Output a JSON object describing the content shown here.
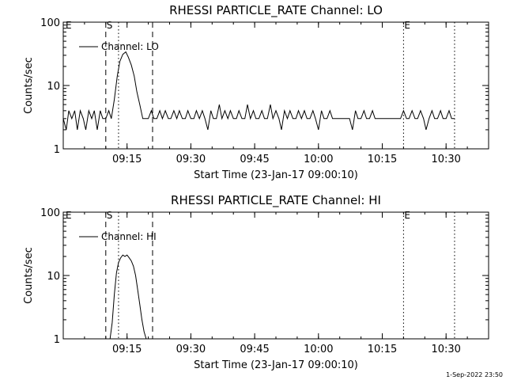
{
  "timestamp": "1-Sep-2022 23:50",
  "chart_data": [
    {
      "type": "line",
      "title": "RHESSI PARTICLE_RATE Channel: LO",
      "xlabel": "Start Time (23-Jan-17 09:00:10)",
      "ylabel": "Counts/sec",
      "yscale": "log",
      "ylim": [
        1,
        100
      ],
      "xlim_minutes": [
        0,
        100
      ],
      "x_ticks": [
        {
          "t": 15,
          "label": "09:15"
        },
        {
          "t": 30,
          "label": "09:30"
        },
        {
          "t": 45,
          "label": "09:45"
        },
        {
          "t": 60,
          "label": "10:00"
        },
        {
          "t": 75,
          "label": "10:15"
        },
        {
          "t": 90,
          "label": "10:30"
        }
      ],
      "y_ticks": [
        {
          "v": 1,
          "label": "1"
        },
        {
          "v": 10,
          "label": "10"
        },
        {
          "v": 100,
          "label": "100"
        }
      ],
      "markers": [
        {
          "t": 10,
          "style": "dashed",
          "label": "S"
        },
        {
          "t": 13,
          "style": "dotted",
          "label": ""
        },
        {
          "t": 21,
          "style": "dashed",
          "label": ""
        },
        {
          "t": 80,
          "style": "dotted",
          "label": "E"
        },
        {
          "t": 92,
          "style": "dotted",
          "label": ""
        }
      ],
      "corner_label": "E",
      "legend": "Channel: LO",
      "series": [
        {
          "name": "Channel: LO",
          "x": [
            0,
            0.7,
            1.3,
            2,
            2.7,
            3.3,
            4,
            4.7,
            5.3,
            6,
            6.7,
            7.3,
            8,
            8.7,
            9.3,
            10,
            10.7,
            11.3,
            12,
            12.7,
            13.3,
            14,
            14.7,
            15.3,
            16,
            16.7,
            17.3,
            18,
            18.7,
            19.3,
            20,
            20.7,
            21.3,
            22,
            22.7,
            23.3,
            24,
            24.7,
            25.3,
            26,
            26.7,
            27.3,
            28,
            28.7,
            29.3,
            30,
            30.7,
            31.3,
            32,
            32.7,
            33.3,
            34,
            34.7,
            35.3,
            36,
            36.7,
            37.3,
            38,
            38.7,
            39.3,
            40,
            40.7,
            41.3,
            42,
            42.7,
            43.3,
            44,
            44.7,
            45.3,
            46,
            46.7,
            47.3,
            48,
            48.7,
            49.3,
            50,
            50.7,
            51.3,
            52,
            52.7,
            53.3,
            54,
            54.7,
            55.3,
            56,
            56.7,
            57.3,
            58,
            58.7,
            59.3,
            60,
            60.7,
            61.3,
            62,
            62.7,
            63.3,
            64,
            64.7,
            65.3,
            66,
            66.7,
            67.3,
            68,
            68.7,
            69.3,
            70,
            70.7,
            71.3,
            72,
            72.7,
            73.3,
            74,
            74.7,
            75.3,
            76,
            76.7,
            77.3,
            78,
            78.7,
            79.3,
            80,
            80.7,
            81.3,
            82,
            82.7,
            83.3,
            84,
            84.7,
            85.3,
            86,
            86.7,
            87.3,
            88,
            88.7,
            89.3,
            90,
            90.7,
            91.3,
            92
          ],
          "y": [
            3,
            2,
            4,
            3,
            4,
            2,
            4,
            3,
            2,
            4,
            3,
            4,
            2,
            4,
            3,
            3,
            4,
            3,
            6,
            14,
            24,
            31,
            34,
            28,
            21,
            14,
            8,
            5,
            3,
            3,
            3,
            4,
            3,
            3,
            4,
            3,
            4,
            3,
            3,
            4,
            3,
            4,
            3,
            3,
            4,
            3,
            3,
            4,
            3,
            4,
            3,
            2,
            4,
            3,
            3,
            5,
            3,
            4,
            3,
            4,
            3,
            3,
            4,
            3,
            3,
            5,
            3,
            4,
            3,
            3,
            4,
            3,
            3,
            5,
            3,
            4,
            3,
            2,
            4,
            3,
            4,
            3,
            3,
            4,
            3,
            4,
            3,
            3,
            4,
            3,
            2,
            4,
            3,
            3,
            4,
            3,
            3,
            3,
            3,
            3,
            3,
            3,
            2,
            4,
            3,
            3,
            4,
            3,
            3,
            4,
            3,
            3,
            3,
            3,
            3,
            3,
            3,
            3,
            3,
            3,
            4,
            3,
            3,
            4,
            3,
            3,
            4,
            3,
            2,
            3,
            4,
            3,
            3,
            4,
            3,
            3,
            4,
            3,
            3
          ]
        }
      ]
    },
    {
      "type": "line",
      "title": "RHESSI PARTICLE_RATE Channel: HI",
      "xlabel": "Start Time (23-Jan-17 09:00:10)",
      "ylabel": "Counts/sec",
      "yscale": "log",
      "ylim": [
        1,
        100
      ],
      "xlim_minutes": [
        0,
        100
      ],
      "x_ticks": [
        {
          "t": 15,
          "label": "09:15"
        },
        {
          "t": 30,
          "label": "09:30"
        },
        {
          "t": 45,
          "label": "09:45"
        },
        {
          "t": 60,
          "label": "10:00"
        },
        {
          "t": 75,
          "label": "10:15"
        },
        {
          "t": 90,
          "label": "10:30"
        }
      ],
      "y_ticks": [
        {
          "v": 1,
          "label": "1"
        },
        {
          "v": 10,
          "label": "10"
        },
        {
          "v": 100,
          "label": "100"
        }
      ],
      "markers": [
        {
          "t": 10,
          "style": "dashed",
          "label": "S"
        },
        {
          "t": 13,
          "style": "dotted",
          "label": ""
        },
        {
          "t": 21,
          "style": "dashed",
          "label": ""
        },
        {
          "t": 80,
          "style": "dotted",
          "label": "E"
        },
        {
          "t": 92,
          "style": "dotted",
          "label": ""
        }
      ],
      "corner_label": "E",
      "legend": "Channel: HI",
      "series": [
        {
          "name": "Channel: HI",
          "x": [
            11,
            11.5,
            12,
            12.5,
            13,
            13.5,
            14,
            14.5,
            15,
            15.5,
            16,
            16.5,
            17,
            17.5,
            18,
            18.5,
            19,
            19.5
          ],
          "y": [
            1,
            1.8,
            5,
            11,
            16,
            19,
            21,
            20,
            21,
            19,
            17,
            14,
            10,
            6,
            3.5,
            2,
            1.3,
            1
          ]
        }
      ]
    }
  ]
}
